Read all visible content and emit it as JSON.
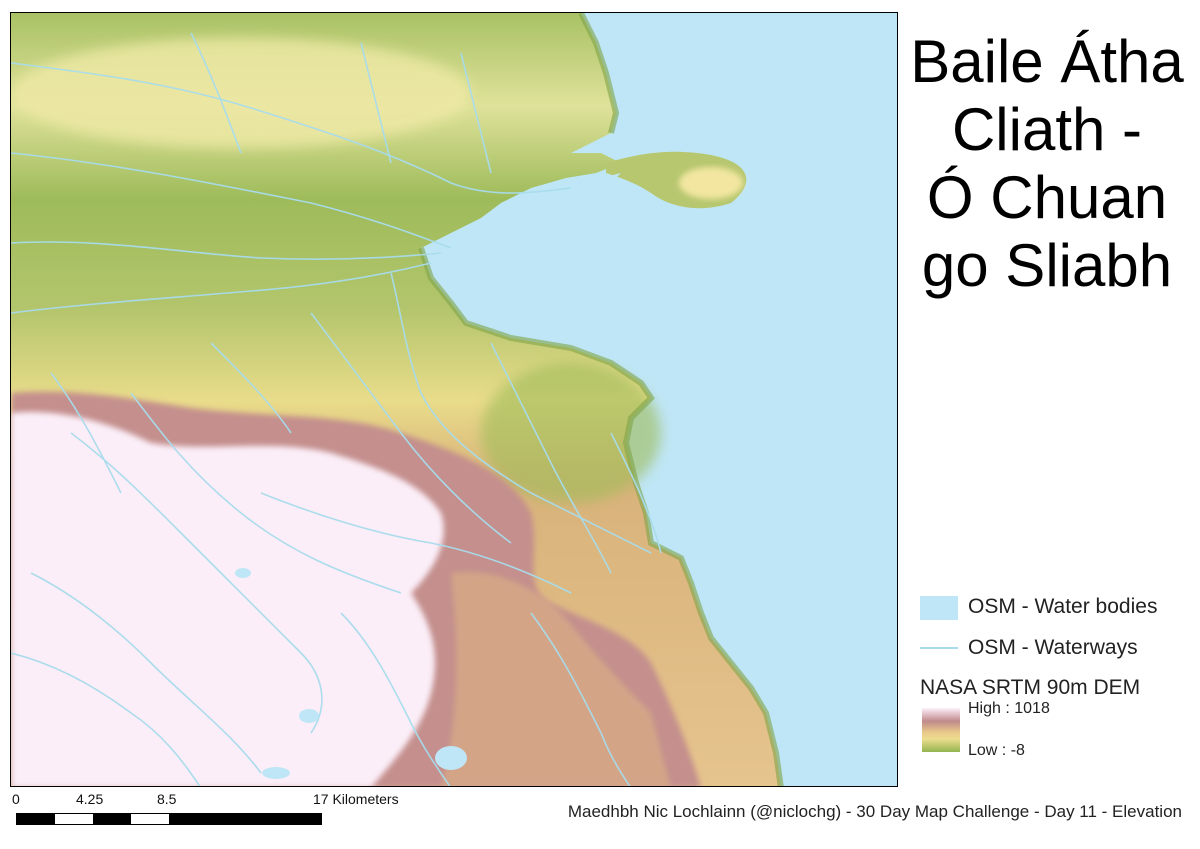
{
  "title": "Baile Átha\nCliath -\nÓ Chuan\ngo Sliabh",
  "legend": {
    "water_bodies": "OSM - Water bodies",
    "waterways": "OSM - Waterways",
    "dem_title": "NASA SRTM 90m DEM",
    "dem_high": "High : 1018",
    "dem_low": "Low : -8"
  },
  "scale": {
    "labels": [
      "0",
      "4.25",
      "8.5",
      "17 Kilometers"
    ]
  },
  "credit": "Maedhbh Nic Lochlainn (@niclochg) - 30 Day Map Challenge - Day 11 - Elevation",
  "colors": {
    "water": "#bfe6f6",
    "waterway": "#a8dcec",
    "low_land": "#94b450",
    "mid_land": "#eddd8e",
    "upland": "#c08a8c",
    "summit": "#fdf0fa"
  }
}
